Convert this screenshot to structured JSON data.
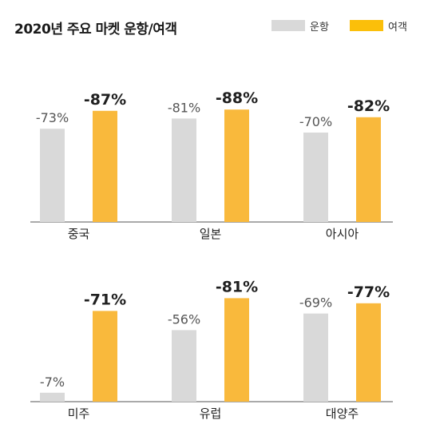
{
  "chart_data": {
    "type": "bar",
    "title": "2020년 주요 마켓  운항/여객",
    "series": [
      {
        "name": "운항",
        "color": "#d9d9d9"
      },
      {
        "name": "여객",
        "color": "#f9b93c"
      }
    ],
    "legend_position": "top-right",
    "panels": [
      {
        "categories": [
          "중국",
          "일본",
          "아시아"
        ],
        "values": [
          [
            -73,
            -87
          ],
          [
            -81,
            -88
          ],
          [
            -70,
            -82
          ]
        ],
        "labels": [
          [
            "-73%",
            "-87%"
          ],
          [
            "-81%",
            "-88%"
          ],
          [
            "-70%",
            "-82%"
          ]
        ]
      },
      {
        "categories": [
          "미주",
          "유럽",
          "대양주"
        ],
        "values": [
          [
            -7,
            -71
          ],
          [
            -56,
            -81
          ],
          [
            -69,
            -77
          ]
        ],
        "labels": [
          [
            "-7%",
            "-71%"
          ],
          [
            "-56%",
            "-81%"
          ],
          [
            "-69%",
            "-77%"
          ]
        ]
      }
    ],
    "grid": false
  }
}
